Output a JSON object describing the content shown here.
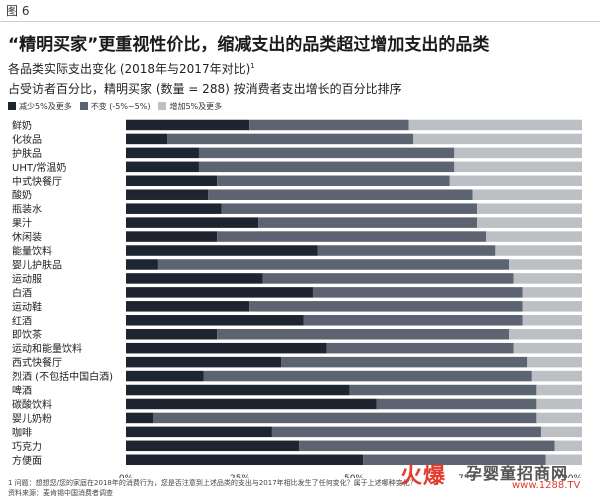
{
  "figure_tag": "图 6",
  "title": "“精明买家”更重视性价比，缩减支出的品类超过增加支出的品类",
  "subtitle": "各品类实际支出变化 (2018年与2017年对比)",
  "subtitle_sup": "1",
  "subtitle2": "占受访者百分比，精明买家 (数量 = 288) 按消费者支出增长的百分比排序",
  "legend": [
    {
      "label": "减少5%及更多",
      "color": "#1c2530"
    },
    {
      "label": "不变 (-5%~5%)",
      "color": "#5b6470"
    },
    {
      "label": "增加5%及更多",
      "color": "#bcbfc3"
    }
  ],
  "footnote": "1 问题：想想您/您的家庭在2018年的消费行为，您是否注意到上述品类的支出与2017年相比发生了任何变化？属于上述哪种变化？",
  "source": "资料来源：麦肯锡中国消费者调查",
  "watermark": {
    "logo": "火爆",
    "name": "孕婴童招商网",
    "url": "www.1288.TV"
  },
  "chart_data": {
    "type": "bar",
    "orientation": "horizontal",
    "stacked": true,
    "categories": [
      "鲜奶",
      "化妆品",
      "护肤品",
      "UHT/常温奶",
      "中式快餐厅",
      "酸奶",
      "瓶装水",
      "果汁",
      "休闲装",
      "能量饮料",
      "婴儿护肤品",
      "运动服",
      "白酒",
      "运动鞋",
      "红酒",
      "即饮茶",
      "运动和能量饮料",
      "西式快餐厅",
      "烈酒 (不包括中国白酒)",
      "啤酒",
      "碳酸饮料",
      "婴儿奶粉",
      "咖啡",
      "巧克力",
      "方便面"
    ],
    "series": [
      {
        "name": "减少5%及更多",
        "color": "#1c2530",
        "values": [
          27,
          9,
          16,
          16,
          20,
          18,
          21,
          29,
          20,
          42,
          7,
          30,
          41,
          27,
          39,
          20,
          44,
          34,
          17,
          49,
          55,
          6,
          32,
          38,
          52
        ]
      },
      {
        "name": "不变 (-5%~5%)",
        "color": "#5b6470",
        "values": [
          35,
          54,
          56,
          56,
          51,
          58,
          56,
          48,
          59,
          39,
          77,
          55,
          46,
          60,
          48,
          64,
          41,
          54,
          72,
          41,
          35,
          84,
          59,
          56,
          40
        ]
      },
      {
        "name": "增加5%及更多",
        "color": "#bcbfc3",
        "values": [
          38,
          37,
          28,
          28,
          29,
          24,
          23,
          23,
          21,
          19,
          16,
          15,
          13,
          13,
          13,
          16,
          15,
          12,
          11,
          10,
          10,
          10,
          9,
          6,
          8
        ]
      }
    ],
    "x_ticks": [
      "0%",
      "25%",
      "50%",
      "75%",
      "100%"
    ],
    "xlim": [
      0,
      100
    ],
    "xlabel": "",
    "ylabel": "",
    "grid": false,
    "legend_position": "top-left"
  }
}
